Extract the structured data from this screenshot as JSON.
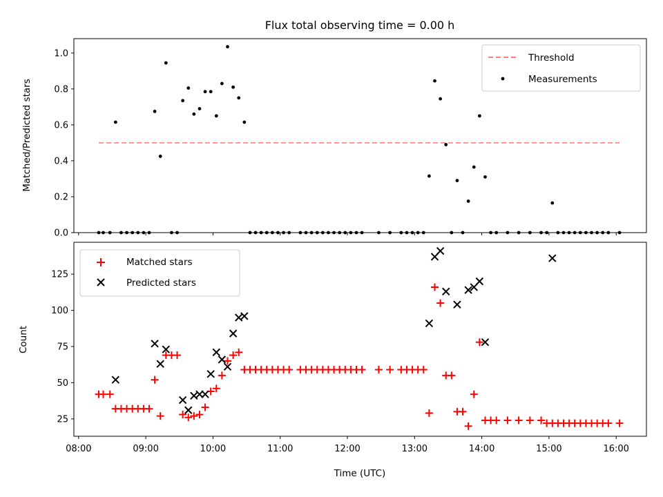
{
  "chart_data": [
    {
      "type": "scatter",
      "title": "Flux total observing time = 0.00 h",
      "ylabel": "Matched/Predicted stars",
      "xlabel": "",
      "ylim": [
        0,
        1.08
      ],
      "xlim_hours": [
        7.93,
        16.45
      ],
      "yticks": [
        0.0,
        0.2,
        0.4,
        0.6,
        0.8,
        1.0
      ],
      "ytick_labels": [
        "0.0",
        "0.2",
        "0.4",
        "0.6",
        "0.8",
        "1.0"
      ],
      "legend": {
        "position": "upper right",
        "entries": [
          "Threshold",
          "Measurements"
        ]
      },
      "threshold": {
        "name": "Threshold",
        "value": 0.5,
        "x_range": [
          "08:18",
          "16:03"
        ],
        "color": "#ff7f7f",
        "style": "dashed"
      },
      "series": [
        {
          "name": "Measurements",
          "color": "#000000",
          "marker": "dot",
          "points": [
            [
              "08:18",
              0
            ],
            [
              "08:22",
              0
            ],
            [
              "08:28",
              0
            ],
            [
              "08:33",
              0.615
            ],
            [
              "08:38",
              0
            ],
            [
              "08:43",
              0
            ],
            [
              "08:48",
              0
            ],
            [
              "08:53",
              0
            ],
            [
              "08:58",
              0
            ],
            [
              "09:03",
              0
            ],
            [
              "09:08",
              0.675
            ],
            [
              "09:13",
              0.425
            ],
            [
              "09:18",
              0.945
            ],
            [
              "09:23",
              0
            ],
            [
              "09:28",
              0
            ],
            [
              "09:33",
              0.735
            ],
            [
              "09:38",
              0.805
            ],
            [
              "09:43",
              0.66
            ],
            [
              "09:48",
              0.69
            ],
            [
              "09:53",
              0.785
            ],
            [
              "09:58",
              0.785
            ],
            [
              "10:03",
              0.65
            ],
            [
              "10:08",
              0.83
            ],
            [
              "10:13",
              1.035
            ],
            [
              "10:18",
              0.81
            ],
            [
              "10:23",
              0.75
            ],
            [
              "10:28",
              0.615
            ],
            [
              "10:33",
              0
            ],
            [
              "10:38",
              0
            ],
            [
              "10:43",
              0
            ],
            [
              "10:48",
              0
            ],
            [
              "10:53",
              0
            ],
            [
              "10:58",
              0
            ],
            [
              "11:03",
              0
            ],
            [
              "11:08",
              0
            ],
            [
              "11:18",
              0
            ],
            [
              "11:23",
              0
            ],
            [
              "11:28",
              0
            ],
            [
              "11:33",
              0
            ],
            [
              "11:38",
              0
            ],
            [
              "11:43",
              0
            ],
            [
              "11:48",
              0
            ],
            [
              "11:53",
              0
            ],
            [
              "11:58",
              0
            ],
            [
              "12:03",
              0
            ],
            [
              "12:08",
              0
            ],
            [
              "12:13",
              0
            ],
            [
              "12:28",
              0
            ],
            [
              "12:38",
              0
            ],
            [
              "12:48",
              0
            ],
            [
              "12:53",
              0
            ],
            [
              "12:58",
              0
            ],
            [
              "13:03",
              0
            ],
            [
              "13:08",
              0
            ],
            [
              "13:13",
              0.315
            ],
            [
              "13:18",
              0.845
            ],
            [
              "13:23",
              0.745
            ],
            [
              "13:28",
              0.49
            ],
            [
              "13:33",
              0
            ],
            [
              "13:38",
              0.29
            ],
            [
              "13:43",
              0
            ],
            [
              "13:48",
              0.175
            ],
            [
              "13:53",
              0.365
            ],
            [
              "13:58",
              0.65
            ],
            [
              "14:03",
              0.31
            ],
            [
              "14:08",
              0
            ],
            [
              "14:13",
              0
            ],
            [
              "14:23",
              0
            ],
            [
              "14:33",
              0
            ],
            [
              "14:43",
              0
            ],
            [
              "14:53",
              0
            ],
            [
              "14:58",
              0
            ],
            [
              "15:03",
              0.165
            ],
            [
              "15:08",
              0
            ],
            [
              "15:13",
              0
            ],
            [
              "15:18",
              0
            ],
            [
              "15:23",
              0
            ],
            [
              "15:28",
              0
            ],
            [
              "15:33",
              0
            ],
            [
              "15:38",
              0
            ],
            [
              "15:43",
              0
            ],
            [
              "15:48",
              0
            ],
            [
              "15:53",
              0
            ],
            [
              "16:03",
              0
            ]
          ]
        }
      ]
    },
    {
      "type": "scatter",
      "title": "",
      "ylabel": "Count",
      "xlabel": "Time (UTC)",
      "ylim": [
        13,
        147
      ],
      "xlim_hours": [
        7.93,
        16.45
      ],
      "yticks": [
        25,
        50,
        75,
        100,
        125
      ],
      "ytick_labels": [
        "25",
        "50",
        "75",
        "100",
        "125"
      ],
      "xticks": [
        "08:00",
        "09:00",
        "10:00",
        "11:00",
        "12:00",
        "13:00",
        "14:00",
        "15:00",
        "16:00"
      ],
      "legend": {
        "position": "upper left",
        "entries": [
          "Matched stars",
          "Predicted stars"
        ]
      },
      "series": [
        {
          "name": "Matched stars",
          "color": "#ff0000",
          "marker": "plus",
          "points": [
            [
              "08:18",
              42
            ],
            [
              "08:22",
              42
            ],
            [
              "08:28",
              42
            ],
            [
              "08:33",
              32
            ],
            [
              "08:38",
              32
            ],
            [
              "08:43",
              32
            ],
            [
              "08:48",
              32
            ],
            [
              "08:53",
              32
            ],
            [
              "08:58",
              32
            ],
            [
              "09:03",
              32
            ],
            [
              "09:08",
              52
            ],
            [
              "09:13",
              27
            ],
            [
              "09:18",
              69
            ],
            [
              "09:23",
              69
            ],
            [
              "09:28",
              69
            ],
            [
              "09:33",
              28
            ],
            [
              "09:38",
              26
            ],
            [
              "09:43",
              27
            ],
            [
              "09:48",
              28
            ],
            [
              "09:53",
              33
            ],
            [
              "09:58",
              44
            ],
            [
              "10:03",
              46
            ],
            [
              "10:08",
              55
            ],
            [
              "10:13",
              65
            ],
            [
              "10:18",
              69
            ],
            [
              "10:23",
              71
            ],
            [
              "10:28",
              59
            ],
            [
              "10:33",
              59
            ],
            [
              "10:38",
              59
            ],
            [
              "10:43",
              59
            ],
            [
              "10:48",
              59
            ],
            [
              "10:53",
              59
            ],
            [
              "10:58",
              59
            ],
            [
              "11:03",
              59
            ],
            [
              "11:08",
              59
            ],
            [
              "11:18",
              59
            ],
            [
              "11:23",
              59
            ],
            [
              "11:28",
              59
            ],
            [
              "11:33",
              59
            ],
            [
              "11:38",
              59
            ],
            [
              "11:43",
              59
            ],
            [
              "11:48",
              59
            ],
            [
              "11:53",
              59
            ],
            [
              "11:58",
              59
            ],
            [
              "12:03",
              59
            ],
            [
              "12:08",
              59
            ],
            [
              "12:13",
              59
            ],
            [
              "12:28",
              59
            ],
            [
              "12:38",
              59
            ],
            [
              "12:48",
              59
            ],
            [
              "12:53",
              59
            ],
            [
              "12:58",
              59
            ],
            [
              "13:03",
              59
            ],
            [
              "13:08",
              59
            ],
            [
              "13:13",
              29
            ],
            [
              "13:18",
              116
            ],
            [
              "13:23",
              105
            ],
            [
              "13:28",
              55
            ],
            [
              "13:33",
              55
            ],
            [
              "13:38",
              30
            ],
            [
              "13:43",
              30
            ],
            [
              "13:48",
              20
            ],
            [
              "13:53",
              42
            ],
            [
              "13:58",
              78
            ],
            [
              "14:03",
              24
            ],
            [
              "14:08",
              24
            ],
            [
              "14:13",
              24
            ],
            [
              "14:23",
              24
            ],
            [
              "14:33",
              24
            ],
            [
              "14:43",
              24
            ],
            [
              "14:53",
              24
            ],
            [
              "14:58",
              22
            ],
            [
              "15:03",
              22
            ],
            [
              "15:08",
              22
            ],
            [
              "15:13",
              22
            ],
            [
              "15:18",
              22
            ],
            [
              "15:23",
              22
            ],
            [
              "15:28",
              22
            ],
            [
              "15:33",
              22
            ],
            [
              "15:38",
              22
            ],
            [
              "15:43",
              22
            ],
            [
              "15:48",
              22
            ],
            [
              "15:53",
              22
            ],
            [
              "16:03",
              22
            ]
          ]
        },
        {
          "name": "Predicted stars",
          "color": "#000000",
          "marker": "x",
          "points": [
            [
              "08:33",
              52
            ],
            [
              "09:08",
              77
            ],
            [
              "09:13",
              63
            ],
            [
              "09:18",
              73
            ],
            [
              "09:33",
              38
            ],
            [
              "09:38",
              31
            ],
            [
              "09:43",
              41
            ],
            [
              "09:48",
              42
            ],
            [
              "09:53",
              42
            ],
            [
              "09:58",
              56
            ],
            [
              "10:03",
              71
            ],
            [
              "10:08",
              66
            ],
            [
              "10:13",
              61
            ],
            [
              "10:18",
              84
            ],
            [
              "10:23",
              95
            ],
            [
              "10:28",
              96
            ],
            [
              "13:13",
              91
            ],
            [
              "13:18",
              137
            ],
            [
              "13:23",
              141
            ],
            [
              "13:28",
              113
            ],
            [
              "13:38",
              104
            ],
            [
              "13:48",
              114
            ],
            [
              "13:53",
              116
            ],
            [
              "13:58",
              120
            ],
            [
              "14:03",
              78
            ],
            [
              "15:03",
              136
            ]
          ]
        }
      ]
    }
  ]
}
